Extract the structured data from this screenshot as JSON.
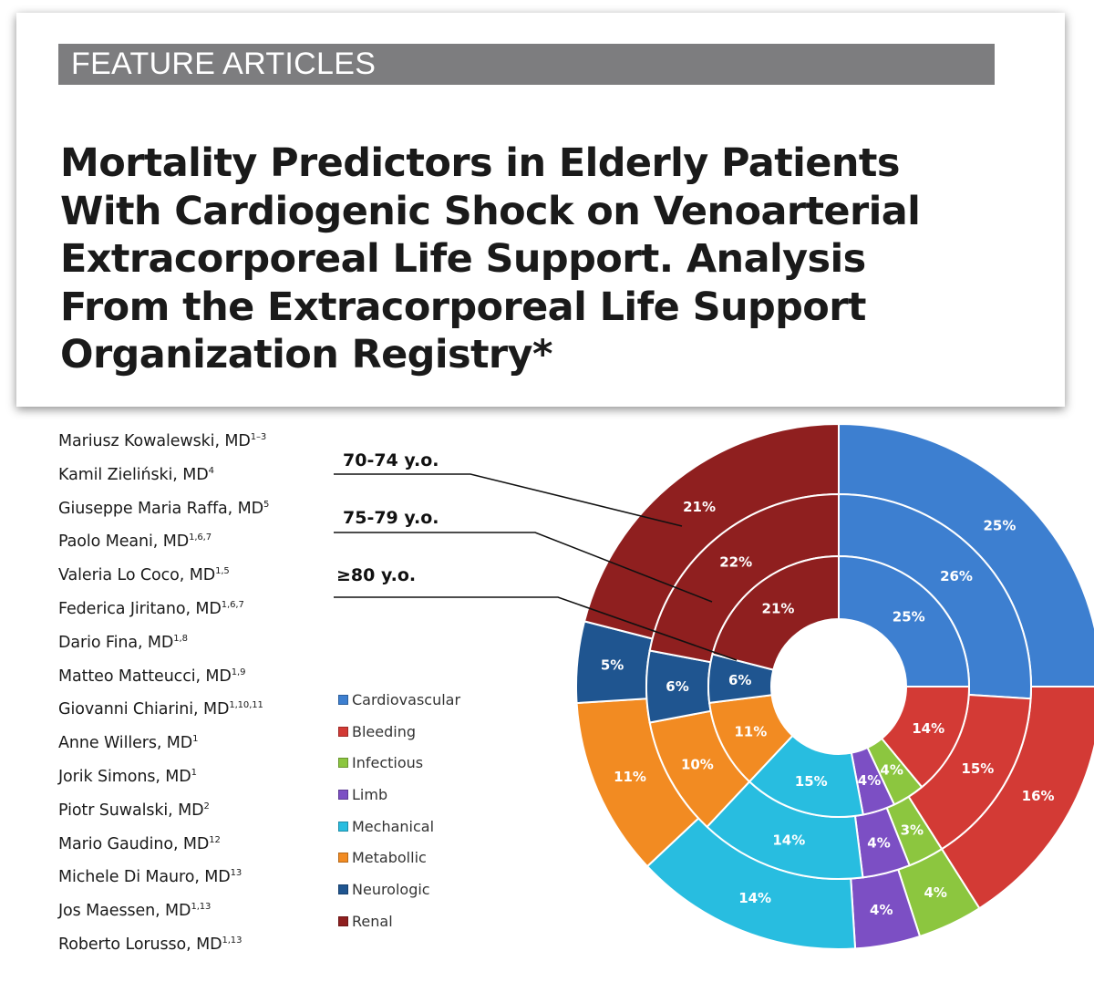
{
  "header": {
    "section": "FEATURE ARTICLES",
    "title_lines": [
      "Mortality Predictors in Elderly Patients",
      "With Cardiogenic Shock on Venoarterial",
      "Extracorporeal Life Support. Analysis",
      "From the Extracorporeal Life Support",
      "Organization Registry*"
    ]
  },
  "authors": [
    {
      "name": "Mariusz Kowalewski, MD",
      "aff": "1–3"
    },
    {
      "name": "Kamil Zieliński, MD",
      "aff": "4"
    },
    {
      "name": "Giuseppe Maria Raffa, MD",
      "aff": "5"
    },
    {
      "name": "Paolo Meani, MD",
      "aff": "1,6,7"
    },
    {
      "name": "Valeria Lo Coco, MD",
      "aff": "1,5"
    },
    {
      "name": "Federica Jiritano, MD",
      "aff": "1,6,7"
    },
    {
      "name": "Dario Fina, MD",
      "aff": "1,8"
    },
    {
      "name": "Matteo Matteucci, MD",
      "aff": "1,9"
    },
    {
      "name": "Giovanni Chiarini, MD",
      "aff": "1,10,11"
    },
    {
      "name": "Anne Willers, MD",
      "aff": "1"
    },
    {
      "name": "Jorik Simons, MD",
      "aff": "1"
    },
    {
      "name": "Piotr Suwalski, MD",
      "aff": "2"
    },
    {
      "name": "Mario Gaudino, MD",
      "aff": "12"
    },
    {
      "name": "Michele Di Mauro, MD",
      "aff": "13"
    },
    {
      "name": "Jos Maessen, MD",
      "aff": "1,13"
    },
    {
      "name": "Roberto Lorusso, MD",
      "aff": "1,13"
    }
  ],
  "chart_data": {
    "type": "pie",
    "subtype": "multi-ring donut",
    "categories": [
      "Cardiovascular",
      "Bleeding",
      "Infectious",
      "Limb",
      "Mechanical",
      "Metabollic",
      "Neurologic",
      "Renal"
    ],
    "colors": [
      "#3d7fd0",
      "#d33a35",
      "#8cc63f",
      "#7c4fc4",
      "#28bde0",
      "#f28b22",
      "#1f5590",
      "#8f1f1f"
    ],
    "series": [
      {
        "name": "70-74 y.o.",
        "ring": "outer",
        "values": [
          25,
          16,
          4,
          4,
          14,
          11,
          5,
          21
        ],
        "labels": [
          "25%",
          "16%",
          "4%",
          "4%",
          "14%",
          "11%",
          "5%",
          "21%"
        ]
      },
      {
        "name": "75-79 y.o.",
        "ring": "middle",
        "values": [
          26,
          15,
          3,
          4,
          14,
          10,
          6,
          22
        ],
        "labels": [
          "26%",
          "15%",
          "3%",
          "4%",
          "14%",
          "10%",
          "6%",
          "22%"
        ]
      },
      {
        "name": "≥80 y.o.",
        "ring": "inner",
        "values": [
          25,
          14,
          4,
          4,
          15,
          11,
          6,
          21
        ],
        "labels": [
          "25%",
          "14%",
          "4%",
          "4%",
          "15%",
          "11%",
          "6%",
          "21%"
        ]
      }
    ],
    "legend_position": "left"
  }
}
